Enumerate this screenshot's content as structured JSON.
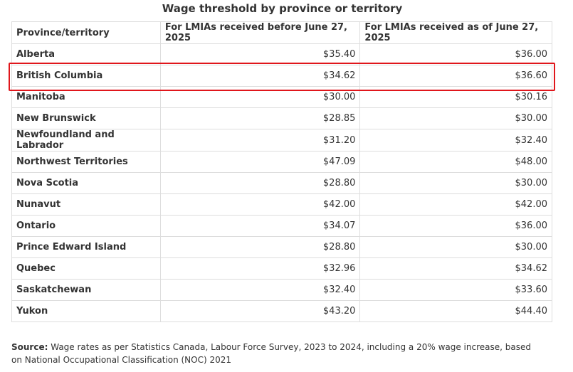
{
  "title": "Wage threshold by province or territory",
  "table": {
    "header": [
      "Province/territory",
      "For LMIAs received before June 27, 2025",
      "For LMIAs received as of June 27, 2025"
    ],
    "rows": [
      [
        "Alberta",
        "$35.40",
        "$36.00"
      ],
      [
        "British Columbia",
        "$34.62",
        "$36.60"
      ],
      [
        "Manitoba",
        "$30.00",
        "$30.16"
      ],
      [
        "New Brunswick",
        "$28.85",
        "$30.00"
      ],
      [
        "Newfoundland and Labrador",
        "$31.20",
        "$32.40"
      ],
      [
        "Northwest Territories",
        "$47.09",
        "$48.00"
      ],
      [
        "Nova Scotia",
        "$28.80",
        "$30.00"
      ],
      [
        "Nunavut",
        "$42.00",
        "$42.00"
      ],
      [
        "Ontario",
        "$34.07",
        "$36.00"
      ],
      [
        "Prince Edward Island",
        "$28.80",
        "$30.00"
      ],
      [
        "Quebec",
        "$32.96",
        "$34.62"
      ],
      [
        "Saskatchewan",
        "$32.40",
        "$33.60"
      ],
      [
        "Yukon",
        "$43.20",
        "$44.40"
      ]
    ]
  },
  "source": {
    "label": "Source:",
    "text": "Wage rates as per Statistics Canada, Labour Force Survey, 2023 to 2024, including a 20% wage increase, based on National Occupational Classification (NOC) 2021"
  }
}
